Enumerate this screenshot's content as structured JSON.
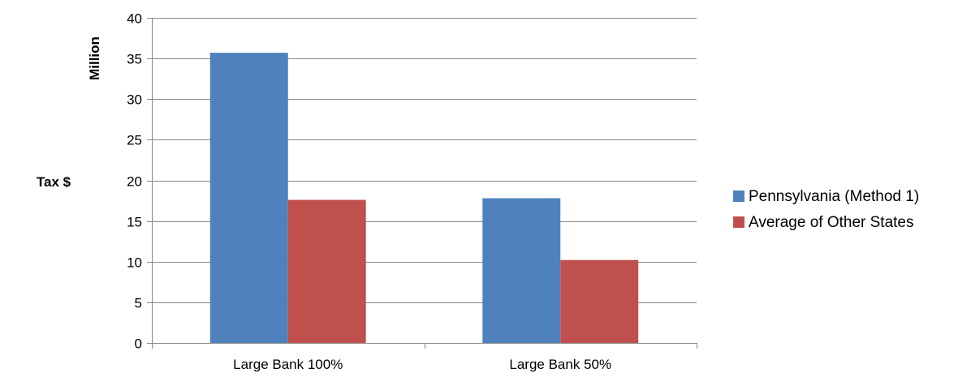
{
  "chart_data": {
    "type": "bar",
    "title": "",
    "ylabel": "Tax $",
    "y_unit_label": "Million",
    "xlabel": "",
    "categories": [
      "Large Bank 100%",
      "Large Bank 50%"
    ],
    "series": [
      {
        "name": "Pennsylvania (Method 1)",
        "values": [
          35.7,
          17.8
        ],
        "color": "#4F81BD"
      },
      {
        "name": "Average of Other States",
        "values": [
          17.6,
          10.2
        ],
        "color": "#C0504D"
      }
    ],
    "ylim": [
      0,
      40
    ],
    "y_ticks": [
      "0",
      "5",
      "10",
      "15",
      "20",
      "25",
      "30",
      "35",
      "40"
    ],
    "grid": true,
    "gridline_color": "#868686",
    "legend_position": "right"
  }
}
